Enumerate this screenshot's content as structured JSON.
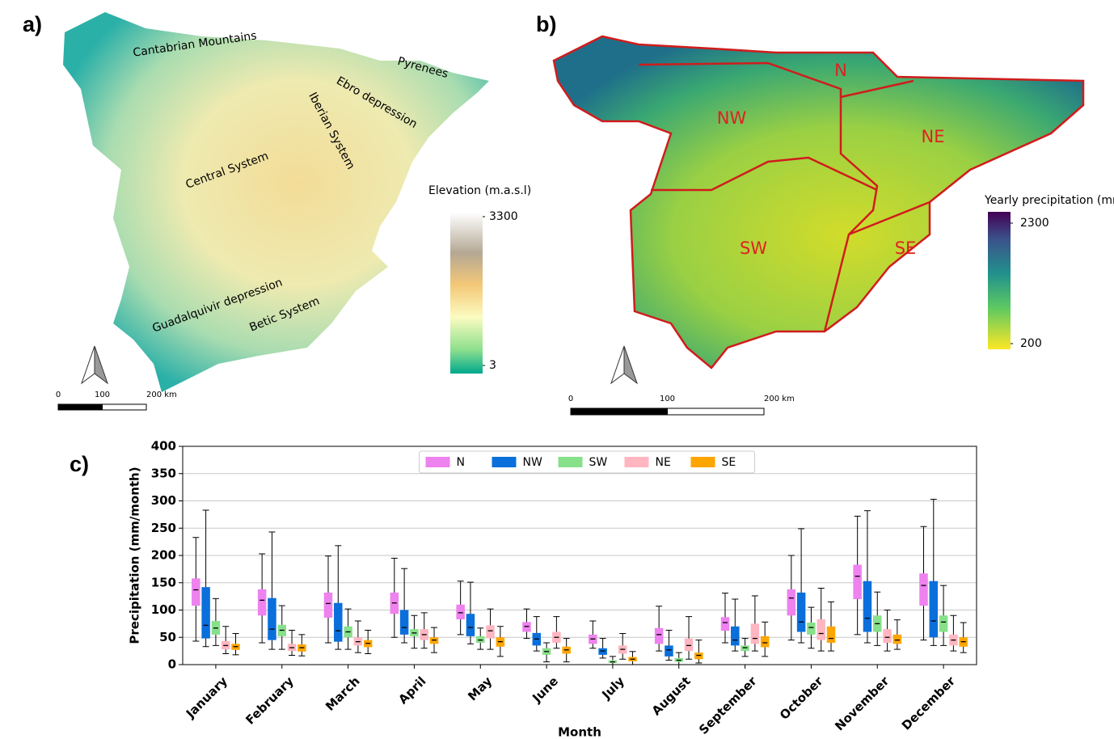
{
  "chart_data": [
    {
      "type": "map",
      "panel": "a)",
      "labels": [
        "Cantabrian Mountains",
        "Pyrenees",
        "Ebro depression",
        "Iberian System",
        "Central System",
        "Guadalquivir depression",
        "Betic System"
      ],
      "colorbar": {
        "title": "Elevation (m.a.s.l)",
        "lim": [
          3,
          3300
        ],
        "ticks": [
          3,
          3300
        ]
      },
      "scalebar": {
        "lim": [
          0,
          200
        ],
        "ticks": [
          0,
          100,
          {
            "value": 200,
            "label": "200 km"
          }
        ]
      }
    },
    {
      "type": "map",
      "panel": "b)",
      "labels": [
        "N",
        "NW",
        "NE",
        "SW",
        "SE"
      ],
      "colorbar": {
        "title": "Yearly precipitation (mm)",
        "lim": [
          200,
          2300
        ],
        "ticks": [
          200,
          2300
        ]
      },
      "scalebar": {
        "lim": [
          0,
          200
        ],
        "ticks": [
          0,
          100,
          {
            "value": 200,
            "label": "200 km"
          }
        ]
      }
    },
    {
      "type": "box",
      "panel": "c)",
      "x_label": "Month",
      "y_label": "Precipitation (mm/month)",
      "categories": [
        "January",
        "February",
        "March",
        "April",
        "May",
        "June",
        "July",
        "August",
        "September",
        "October",
        "November",
        "December"
      ],
      "ylim": [
        0,
        400
      ],
      "yticks": [
        0,
        50,
        100,
        150,
        200,
        250,
        300,
        350,
        400
      ],
      "grid": true,
      "legend": "upper center",
      "series": [
        {
          "name": "N",
          "color": "#ee82ee",
          "whislo": [
            43,
            40,
            40,
            50,
            55,
            48,
            30,
            25,
            40,
            45,
            55,
            45
          ],
          "q1": [
            108,
            90,
            86,
            93,
            83,
            60,
            38,
            38,
            62,
            90,
            120,
            108
          ],
          "med": [
            137,
            118,
            112,
            113,
            95,
            70,
            47,
            55,
            77,
            122,
            162,
            145
          ],
          "q3": [
            158,
            138,
            132,
            132,
            110,
            78,
            55,
            67,
            87,
            138,
            183,
            167
          ],
          "whishi": [
            233,
            203,
            199,
            195,
            153,
            102,
            80,
            107,
            131,
            200,
            272,
            253
          ]
        },
        {
          "name": "NW",
          "color": "#0a6fdb",
          "whislo": [
            33,
            28,
            28,
            40,
            38,
            25,
            12,
            8,
            25,
            40,
            40,
            35
          ],
          "q1": [
            48,
            45,
            42,
            55,
            52,
            35,
            18,
            15,
            35,
            60,
            60,
            50
          ],
          "med": [
            72,
            65,
            62,
            68,
            68,
            47,
            25,
            27,
            45,
            78,
            85,
            80
          ],
          "q3": [
            142,
            122,
            113,
            100,
            93,
            58,
            30,
            35,
            70,
            132,
            153,
            153
          ],
          "whishi": [
            283,
            243,
            218,
            176,
            151,
            88,
            48,
            63,
            120,
            249,
            282,
            303
          ]
        },
        {
          "name": "SW",
          "color": "#87e08a",
          "whislo": [
            35,
            28,
            28,
            30,
            28,
            5,
            0,
            0,
            15,
            30,
            35,
            35
          ],
          "q1": [
            55,
            52,
            50,
            52,
            40,
            18,
            3,
            5,
            25,
            55,
            60,
            60
          ],
          "med": [
            67,
            63,
            60,
            58,
            45,
            24,
            5,
            8,
            31,
            68,
            75,
            78
          ],
          "q3": [
            80,
            73,
            70,
            65,
            52,
            30,
            8,
            12,
            35,
            77,
            90,
            90
          ],
          "whishi": [
            121,
            108,
            102,
            90,
            67,
            40,
            15,
            22,
            48,
            105,
            133,
            145
          ]
        },
        {
          "name": "NE",
          "color": "#ffb6c1",
          "whislo": [
            20,
            17,
            22,
            30,
            28,
            30,
            10,
            10,
            25,
            25,
            25,
            25
          ],
          "q1": [
            28,
            25,
            35,
            45,
            48,
            40,
            20,
            25,
            38,
            45,
            40,
            35
          ],
          "med": [
            35,
            31,
            42,
            55,
            62,
            50,
            28,
            35,
            48,
            57,
            50,
            45
          ],
          "q3": [
            43,
            38,
            50,
            65,
            72,
            60,
            35,
            48,
            75,
            83,
            65,
            55
          ],
          "whishi": [
            70,
            63,
            80,
            95,
            102,
            88,
            57,
            88,
            126,
            140,
            100,
            90
          ]
        },
        {
          "name": "SE",
          "color": "#ffa500",
          "whislo": [
            18,
            16,
            20,
            22,
            15,
            5,
            0,
            3,
            15,
            25,
            28,
            22
          ],
          "q1": [
            27,
            24,
            32,
            38,
            33,
            20,
            6,
            10,
            32,
            40,
            38,
            33
          ],
          "med": [
            33,
            31,
            39,
            45,
            42,
            27,
            10,
            17,
            40,
            48,
            45,
            42
          ],
          "q3": [
            38,
            37,
            45,
            50,
            50,
            33,
            14,
            22,
            52,
            70,
            55,
            50
          ],
          "whishi": [
            57,
            55,
            63,
            68,
            70,
            48,
            24,
            45,
            78,
            115,
            82,
            77
          ]
        }
      ]
    }
  ]
}
